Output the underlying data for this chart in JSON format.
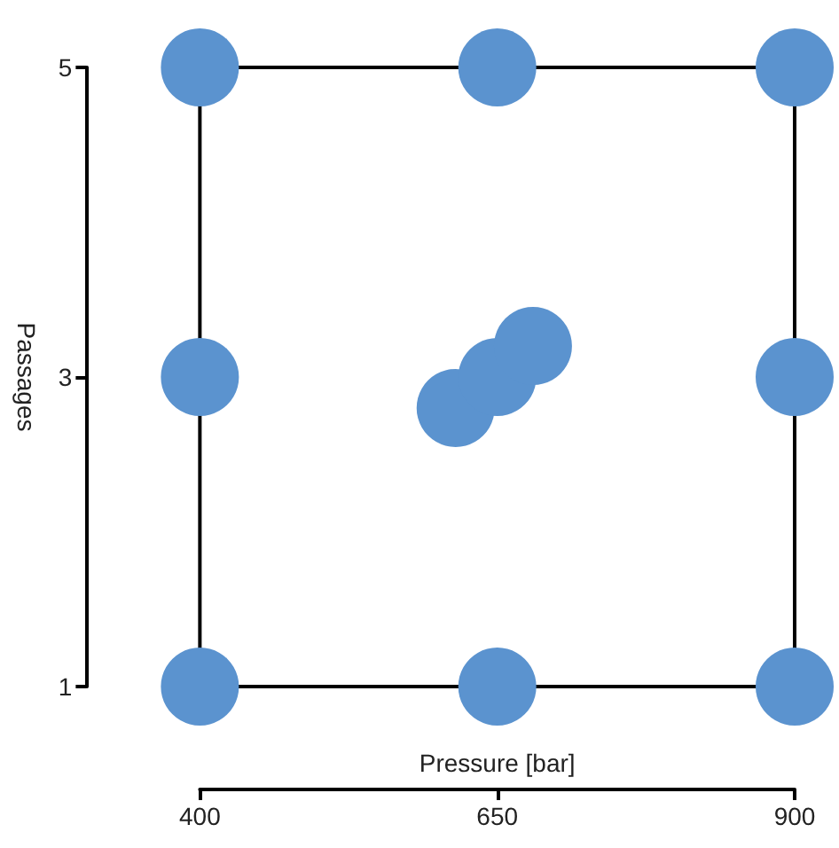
{
  "chart_data": {
    "type": "scatter",
    "xlabel": "Pressure [bar]",
    "ylabel": "Passages",
    "xlim": [
      400,
      900
    ],
    "ylim": [
      1,
      5
    ],
    "xticks": [
      400,
      650,
      900
    ],
    "yticks": [
      1,
      3,
      5
    ],
    "grid": false,
    "marker": "circle",
    "series": [
      {
        "color": "#5b93cf",
        "x": [
          400,
          650,
          900,
          400,
          900,
          400,
          650,
          900,
          615,
          650,
          680
        ],
        "values": [
          1,
          1,
          1,
          3,
          3,
          5,
          5,
          5,
          2.8,
          3.0,
          3.2
        ]
      }
    ]
  }
}
